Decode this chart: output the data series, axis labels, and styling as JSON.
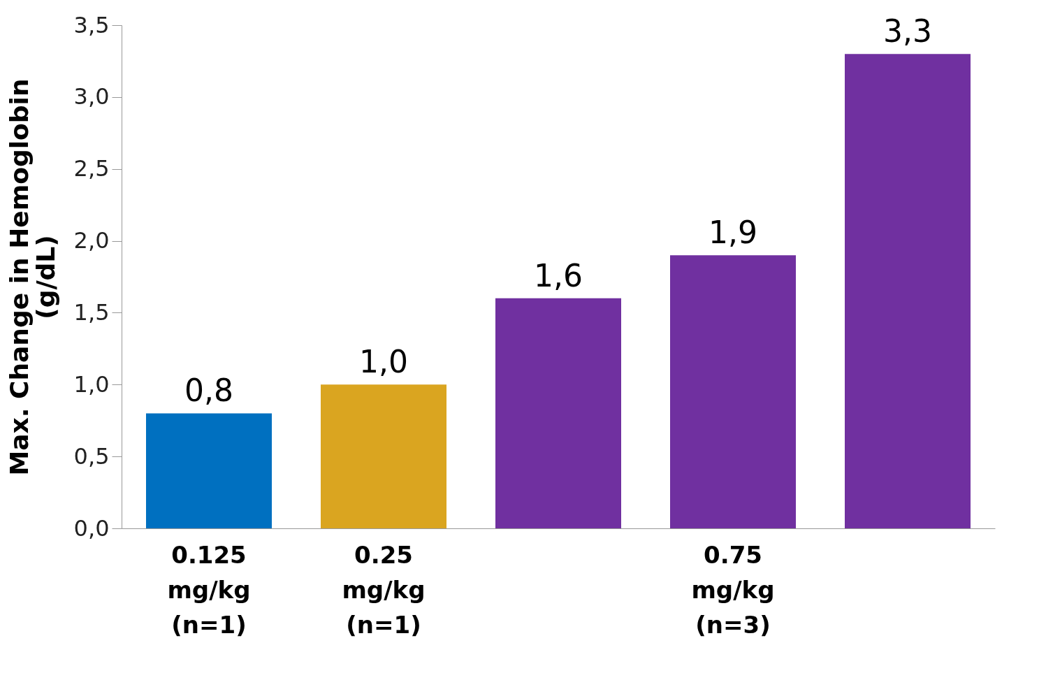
{
  "chart_data": {
    "type": "bar",
    "ylabel": "Max. Change in Hemoglobin (g/dL)",
    "categories": [
      "0.125 mg/kg (n=1)",
      "0.25 mg/kg (n=1)",
      null,
      "0.75 mg/kg (n=3)",
      null
    ],
    "values": [
      0.8,
      1.0,
      1.6,
      1.9,
      3.3
    ],
    "colors": [
      "#0070c0",
      "#daa520",
      "#7030a0",
      "#7030a0",
      "#7030a0"
    ],
    "value_labels": [
      "0,8",
      "1,0",
      "1,6",
      "1,9",
      "3,3"
    ],
    "ylim": [
      0,
      3.5
    ],
    "yticks": [
      {
        "value": 0,
        "label": "0,0"
      },
      {
        "value": 0.5,
        "label": "0,5"
      },
      {
        "value": 1,
        "label": "1,0"
      },
      {
        "value": 1.5,
        "label": "1,5"
      },
      {
        "value": 2,
        "label": "2,0"
      },
      {
        "value": 2.5,
        "label": "2,5"
      },
      {
        "value": 3,
        "label": "3,0"
      },
      {
        "value": 3.5,
        "label": "3,5"
      }
    ],
    "grid": false
  }
}
